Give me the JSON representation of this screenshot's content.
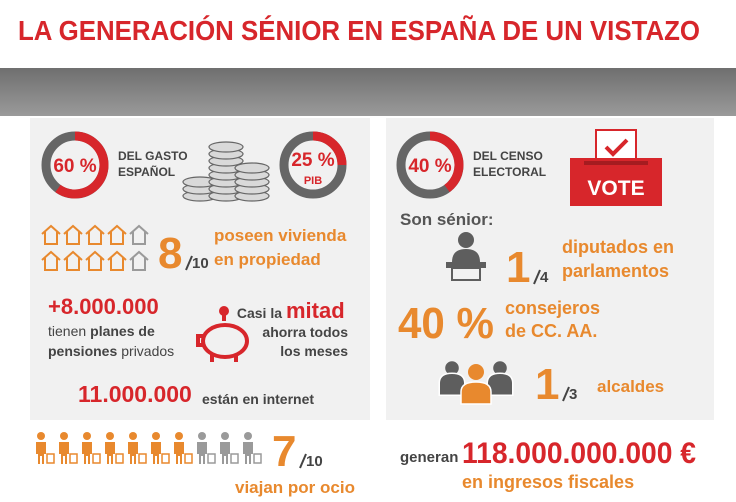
{
  "header": {
    "title": "LA GENERACIÓN SÉNIOR EN ESPAÑA DE UN VISTAZO"
  },
  "left_panel": {
    "spending": {
      "percent": "60 %",
      "label_lines": [
        "DEL GASTO",
        "ESPAÑOL"
      ]
    },
    "gdp": {
      "percent": "25 %",
      "label": "PIB"
    },
    "home_ownership": {
      "numerator": 8,
      "denominator": 10,
      "text_lines": [
        "poseen vivienda",
        "en propiedad"
      ]
    },
    "pensions": {
      "number": "+8.000.000",
      "line1": [
        "tienen",
        "planes de"
      ],
      "line2": [
        "pensiones",
        "privados"
      ]
    },
    "savings": {
      "prefix": "Casi la",
      "highlight": "mitad",
      "lines": [
        "ahorra todos",
        "los meses"
      ]
    },
    "internet": {
      "number": "11.000.000",
      "text": "están en internet"
    }
  },
  "travel": {
    "numerator": 7,
    "denominator": 10,
    "text": "viajan por ocio"
  },
  "right_panel": {
    "census": {
      "percent": "40 %",
      "label_lines": [
        "DEL CENSO",
        "ELECTORAL"
      ]
    },
    "ballot": "VOTE",
    "heading": "Son sénior:",
    "deputies": {
      "numerator": 1,
      "denominator": 4,
      "text_lines": [
        "diputados en",
        "parlamentos"
      ]
    },
    "councillors": {
      "percent": "40 %",
      "text_lines": [
        "consejeros",
        "de CC. AA."
      ]
    },
    "mayors": {
      "numerator": 1,
      "denominator": 3,
      "text": "alcaldes"
    }
  },
  "tax": {
    "prefix": "generan",
    "amount": "118.000.000.000 €",
    "text": "en ingresos fiscales"
  }
}
